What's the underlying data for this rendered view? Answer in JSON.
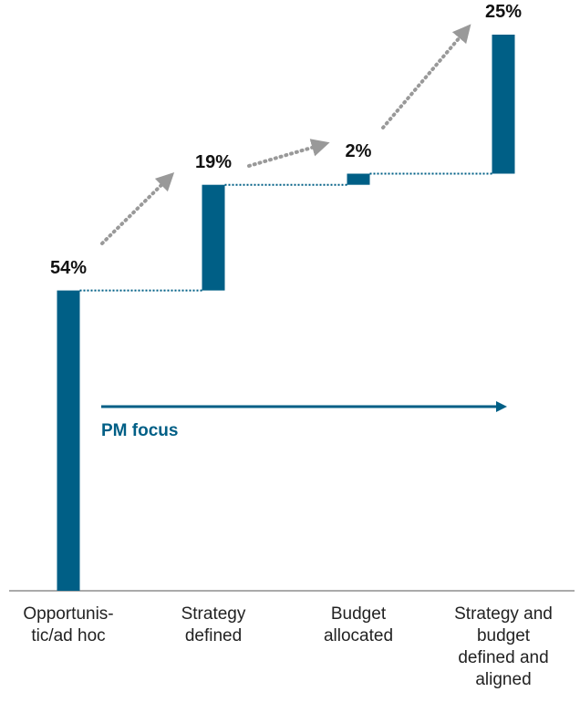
{
  "chart_data": {
    "type": "waterfall",
    "categories": [
      "Opportunis-\ntic/ad hoc",
      "Strategy\ndefined",
      "Budget\nallocated",
      "Strategy and\nbudget\ndefined and\naligned"
    ],
    "values": [
      54,
      19,
      2,
      25
    ],
    "value_labels": [
      "54%",
      "19%",
      "2%",
      "25%"
    ],
    "color": "#005f86",
    "annotation": "PM focus"
  }
}
